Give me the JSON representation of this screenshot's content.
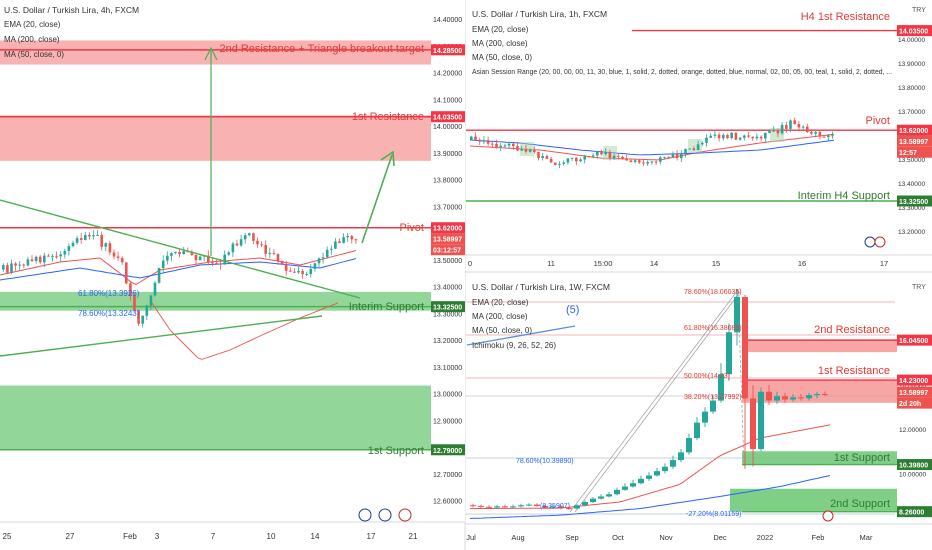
{
  "colors": {
    "up": "#26a69a",
    "down": "#ef5350",
    "green_line": "#4caf50",
    "red_line": "#f23645",
    "zone_red": "#f7a5a5",
    "zone_green": "#7fcf87",
    "ema": "#ef5350",
    "ma": "#2962ff",
    "axis_text": "#333333",
    "grid": "#eef0f3"
  },
  "chart_data": [
    {
      "type": "candlestick",
      "name": "4h",
      "header": {
        "symbol": "U.S. Dollar / Turkish Lira, 4h, FXCM",
        "indicators": [
          "EMA (20, close)",
          "MA (200, close)",
          "MA (50, close, 0)"
        ]
      },
      "ylim": [
        12.52,
        14.46
      ],
      "yticks": [
        "14.40000",
        "14.30000",
        "14.20000",
        "14.10000",
        "14.00000",
        "13.90000",
        "13.80000",
        "13.70000",
        "13.60000",
        "13.50000",
        "13.40000",
        "13.30000",
        "13.20000",
        "13.10000",
        "13.00000",
        "12.90000",
        "12.80000",
        "12.70000",
        "12.60000"
      ],
      "xticks": [
        "25",
        "27",
        "Feb",
        "3",
        "7",
        "10",
        "14",
        "17",
        "21"
      ],
      "labels": {
        "res2": "2nd Resistance + Triangle breakout target",
        "res1": "1st Resistance",
        "pivot": "Pivot",
        "isup": "Interim Support",
        "sup1": "1st Support",
        "fib618": "61.80%(13.3926)",
        "fib786": "78.60%(13.3243)"
      },
      "tags": {
        "res2": "14.28500",
        "res1": "14.03500",
        "pivot": "13.62000",
        "price": "13.58997",
        "timer": "03:12:57",
        "isup": "13.32500",
        "sup1": "12.79000"
      },
      "levels": {
        "res2": 14.285,
        "res1": 14.035,
        "pivot": 13.62,
        "isup": 13.325,
        "sup1": 12.79
      },
      "zones": [
        {
          "kind": "red",
          "from": 14.23,
          "to": 14.32
        },
        {
          "kind": "red",
          "from": 13.87,
          "to": 14.04
        },
        {
          "kind": "green",
          "from": 13.31,
          "to": 13.38
        },
        {
          "kind": "green",
          "from": 12.79,
          "to": 13.03
        }
      ]
    },
    {
      "type": "candlestick",
      "name": "1h",
      "header": {
        "symbol": "U.S. Dollar / Turkish Lira, 1h, FXCM",
        "indicators": [
          "EMA (20, close)",
          "MA (200, close)",
          "MA (50, close, 0)",
          "Asian Session Range (20, 00, 00, 00, 11, 30, blue, 1, solid, 2, dotted, orange, dotted, blue, normal, 02, 00, 05, 00, teal, 1, solid, 2, dotted, ..."
        ]
      },
      "currency": "TRY",
      "ylim": [
        13.1,
        14.15
      ],
      "yticks": [
        "14.00000",
        "13.90000",
        "13.80000",
        "13.70000",
        "13.60000",
        "13.50000",
        "13.40000",
        "13.30000",
        "13.20000"
      ],
      "xticks": [
        "0",
        "11",
        "15:00",
        "14",
        "15",
        "16",
        "17"
      ],
      "labels": {
        "h4res": "H4 1st Resistance",
        "pivot": "Pivot",
        "h4sup": "Interim H4 Support"
      },
      "tags": {
        "h4res": "14.03500",
        "pivot": "13.62000",
        "price": "13.58997",
        "timer": "12:57",
        "h4sup": "13.32500"
      },
      "levels": {
        "h4res": 14.035,
        "pivot": 13.62,
        "h4sup": 13.325
      }
    },
    {
      "type": "candlestick",
      "name": "1W",
      "header": {
        "symbol": "U.S. Dollar / Turkish Lira, 1W, FXCM",
        "indicators": [
          "EMA (20, close)",
          "MA (200, close)",
          "MA (50, close, 0)",
          "Ichimoku (9, 26, 52, 26)"
        ]
      },
      "currency": "TRY",
      "wave": "(5)",
      "ylim": [
        7.7,
        19.0
      ],
      "yticks": [
        "16.00000",
        "14.00000",
        "12.00000",
        "10.00000"
      ],
      "xticks": [
        "Jul",
        "Aug",
        "Sep",
        "Oct",
        "Nov",
        "Dec",
        "2022",
        "Feb",
        "Mar"
      ],
      "labels": {
        "res2": "2nd Resistance",
        "res1": "1st Resistance",
        "sup1": "1st Support",
        "sup2": "2nd Support",
        "fib786top": "78.60%(18.06035)",
        "fib618top": "61.80%(16.38085)",
        "fib50": "50.00%(14.23)",
        "fib382": "38.20%(13.27992)",
        "fib786": "78.60%(10.39890)",
        "fib272": "-27.20%(8.01159)",
        "fib_small": "(8.35907)"
      },
      "tags": {
        "res2": "16.04500",
        "res1": "14.23000",
        "price": "13.58997",
        "timer": "2d 20h",
        "sup1": "10.39800",
        "sup2": "8.26000"
      },
      "levels": {
        "res2": 16.045,
        "res1": 14.23,
        "sup1": 10.398,
        "sup2": 8.26
      }
    }
  ]
}
